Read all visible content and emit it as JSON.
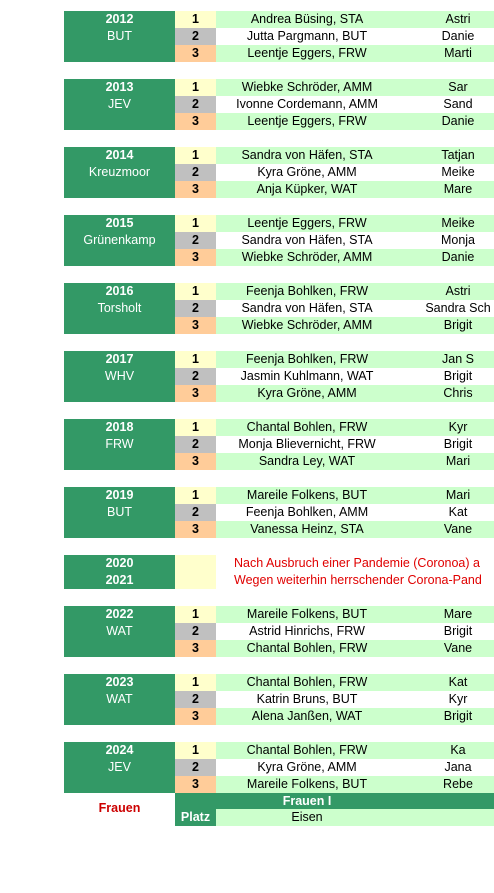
{
  "blocks": [
    {
      "year": "2012",
      "place": "BUT",
      "rows": [
        {
          "rank": "1",
          "name": "Andrea Büsing, STA",
          "second": "Astri"
        },
        {
          "rank": "2",
          "name": "Jutta Pargmann, BUT",
          "second": "Danie"
        },
        {
          "rank": "3",
          "name": "Leentje Eggers, FRW",
          "second": "Marti"
        }
      ]
    },
    {
      "year": "2013",
      "place": "JEV",
      "rows": [
        {
          "rank": "1",
          "name": "Wiebke Schröder, AMM",
          "second": "Sar"
        },
        {
          "rank": "2",
          "name": "Ivonne Cordemann, AMM",
          "second": "Sand"
        },
        {
          "rank": "3",
          "name": "Leentje Eggers, FRW",
          "second": "Danie"
        }
      ]
    },
    {
      "year": "2014",
      "place": "Kreuzmoor",
      "rows": [
        {
          "rank": "1",
          "name": "Sandra von Häfen, STA",
          "second": "Tatjan"
        },
        {
          "rank": "2",
          "name": "Kyra Gröne, AMM",
          "second": "Meike"
        },
        {
          "rank": "3",
          "name": "Anja Küpker, WAT",
          "second": "Mare"
        }
      ]
    },
    {
      "year": "2015",
      "place": "Grünenkamp",
      "rows": [
        {
          "rank": "1",
          "name": "Leentje Eggers, FRW",
          "second": "Meike"
        },
        {
          "rank": "2",
          "name": "Sandra von Häfen, STA",
          "second": "Monja"
        },
        {
          "rank": "3",
          "name": "Wiebke Schröder, AMM",
          "second": "Danie"
        }
      ]
    },
    {
      "year": "2016",
      "place": "Torsholt",
      "rows": [
        {
          "rank": "1",
          "name": "Feenja Bohlken, FRW",
          "second": "Astri"
        },
        {
          "rank": "2",
          "name": "Sandra von Häfen, STA",
          "second": "Sandra Sch"
        },
        {
          "rank": "3",
          "name": "Wiebke Schröder, AMM",
          "second": "Brigit"
        }
      ]
    },
    {
      "year": "2017",
      "place": "WHV",
      "rows": [
        {
          "rank": "1",
          "name": "Feenja Bohlken, FRW",
          "second": "Jan S"
        },
        {
          "rank": "2",
          "name": "Jasmin Kuhlmann, WAT",
          "second": "Brigit"
        },
        {
          "rank": "3",
          "name": "Kyra Gröne, AMM",
          "second": "Chris"
        }
      ]
    },
    {
      "year": "2018",
      "place": "FRW",
      "rows": [
        {
          "rank": "1",
          "name": "Chantal Bohlen, FRW",
          "second": "Kyr"
        },
        {
          "rank": "2",
          "name": "Monja Blievernicht, FRW",
          "second": "Brigit"
        },
        {
          "rank": "3",
          "name": "Sandra Ley, WAT",
          "second": "Mari"
        }
      ]
    },
    {
      "year": "2019",
      "place": "BUT",
      "rows": [
        {
          "rank": "1",
          "name": "Mareile Folkens, BUT",
          "second": "Mari"
        },
        {
          "rank": "2",
          "name": "Feenja Bohlken, AMM",
          "second": "Kat"
        },
        {
          "rank": "3",
          "name": "Vanessa Heinz, STA",
          "second": "Vane"
        }
      ]
    }
  ],
  "pandemic": {
    "years": [
      "2020",
      "2021"
    ],
    "notes": [
      "Nach Ausbruch einer Pandemie (Coronoa) a",
      "Wegen weiterhin herrschender Corona-Pand"
    ]
  },
  "blocks2": [
    {
      "year": "2022",
      "place": "WAT",
      "rows": [
        {
          "rank": "1",
          "name": "Mareile Folkens, BUT",
          "second": "Mare"
        },
        {
          "rank": "2",
          "name": "Astrid Hinrichs, FRW",
          "second": "Brigit"
        },
        {
          "rank": "3",
          "name": "Chantal Bohlen, FRW",
          "second": "Vane"
        }
      ]
    },
    {
      "year": "2023",
      "place": "WAT",
      "rows": [
        {
          "rank": "1",
          "name": "Chantal Bohlen, FRW",
          "second": "Kat"
        },
        {
          "rank": "2",
          "name": "Katrin Bruns, BUT",
          "second": "Kyr"
        },
        {
          "rank": "3",
          "name": "Alena Janßen, WAT",
          "second": "Brigit"
        }
      ]
    },
    {
      "year": "2024",
      "place": "JEV",
      "rows": [
        {
          "rank": "1",
          "name": "Chantal Bohlen, FRW",
          "second": "Ka"
        },
        {
          "rank": "2",
          "name": "Kyra Gröne, AMM",
          "second": "Jana"
        },
        {
          "rank": "3",
          "name": "Mareile Folkens, BUT",
          "second": "Rebe"
        }
      ]
    }
  ],
  "footer": {
    "section": "Frauen",
    "header": "Frauen I",
    "place_label": "Platz",
    "category": "Eisen"
  },
  "colors": {
    "green": "#339966",
    "light_green": "#ccffcc",
    "gold": "#ffffcc",
    "silver": "#c0c0c0",
    "bronze": "#ffcc99",
    "red": "#e00000"
  }
}
